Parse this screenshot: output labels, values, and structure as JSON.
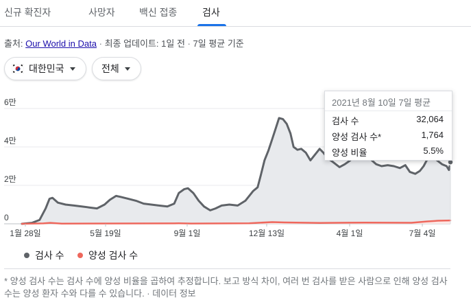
{
  "tabs": [
    {
      "label": "신규 확진자",
      "active": false
    },
    {
      "label": "사망자",
      "active": false
    },
    {
      "label": "백신 접종",
      "active": false
    },
    {
      "label": "검사",
      "active": true
    }
  ],
  "source": {
    "prefix": "출처:",
    "link": "Our World in Data",
    "updated": "최종 업데이트: 1일 전",
    "basis": "7일 평균 기준"
  },
  "filters": {
    "country": "대한민국",
    "scope": "전체"
  },
  "icons": {
    "country_flag": "south-korea-flag-icon",
    "dropdown": "caret-down-icon"
  },
  "tooltip": {
    "title": "2021년 8월 10일 7일 평균",
    "rows": [
      {
        "label": "검사 수",
        "value": "32,064"
      },
      {
        "label": "양성 검사 수*",
        "value": "1,764"
      },
      {
        "label": "양성 비율",
        "value": "5.5%"
      }
    ]
  },
  "legend": [
    {
      "label": "검사 수",
      "color": "#5f6368"
    },
    {
      "label": "양성 검사 수",
      "color": "#ee675c"
    }
  ],
  "footnote": "* 양성 검사 수는 검사 수에 양성 비율을 곱하여 추정합니다. 보고 방식 차이, 여러 번 검사를 받은 사람으로 인해 양성 검사 수는 양성 환자 수와 다를 수 있습니다. · 데이터 정보",
  "chart_data": {
    "type": "area",
    "ylim": [
      0,
      60000
    ],
    "yticks": [
      {
        "value": 0,
        "label": "0"
      },
      {
        "value": 20000,
        "label": "2만"
      },
      {
        "value": 40000,
        "label": "4만"
      },
      {
        "value": 60000,
        "label": "6만"
      }
    ],
    "xticks": [
      "1월 28일",
      "5월 19일",
      "9월 1일",
      "12월 13일",
      "4월 1일",
      "7월 4일"
    ],
    "xrange": [
      "2020-01-28",
      "2021-08-10"
    ],
    "series": [
      {
        "name": "검사 수",
        "color": "#5f6368",
        "points": [
          [
            "2020-01-28",
            0
          ],
          [
            "2020-02-10",
            500
          ],
          [
            "2020-02-20",
            2000
          ],
          [
            "2020-02-28",
            8000
          ],
          [
            "2020-03-04",
            13000
          ],
          [
            "2020-03-08",
            13500
          ],
          [
            "2020-03-15",
            11000
          ],
          [
            "2020-03-25",
            10000
          ],
          [
            "2020-04-05",
            9500
          ],
          [
            "2020-04-15",
            9000
          ],
          [
            "2020-04-25",
            8500
          ],
          [
            "2020-05-05",
            8000
          ],
          [
            "2020-05-15",
            10000
          ],
          [
            "2020-05-22",
            12500
          ],
          [
            "2020-05-30",
            14500
          ],
          [
            "2020-06-05",
            14000
          ],
          [
            "2020-06-15",
            13000
          ],
          [
            "2020-06-25",
            12000
          ],
          [
            "2020-07-05",
            10500
          ],
          [
            "2020-07-15",
            10000
          ],
          [
            "2020-07-25",
            9500
          ],
          [
            "2020-08-05",
            9000
          ],
          [
            "2020-08-14",
            10500
          ],
          [
            "2020-08-20",
            16000
          ],
          [
            "2020-08-27",
            18000
          ],
          [
            "2020-09-01",
            18500
          ],
          [
            "2020-09-08",
            16000
          ],
          [
            "2020-09-15",
            12000
          ],
          [
            "2020-09-22",
            9000
          ],
          [
            "2020-09-30",
            7000
          ],
          [
            "2020-10-07",
            8000
          ],
          [
            "2020-10-15",
            9500
          ],
          [
            "2020-10-25",
            10000
          ],
          [
            "2020-11-05",
            9500
          ],
          [
            "2020-11-15",
            12000
          ],
          [
            "2020-11-25",
            17000
          ],
          [
            "2020-12-01",
            19000
          ],
          [
            "2020-12-05",
            25000
          ],
          [
            "2020-12-10",
            33000
          ],
          [
            "2020-12-15",
            38000
          ],
          [
            "2020-12-20",
            44000
          ],
          [
            "2020-12-25",
            50000
          ],
          [
            "2020-12-29",
            55000
          ],
          [
            "2021-01-03",
            54500
          ],
          [
            "2021-01-08",
            52000
          ],
          [
            "2021-01-13",
            47000
          ],
          [
            "2021-01-17",
            40000
          ],
          [
            "2021-01-22",
            38500
          ],
          [
            "2021-01-27",
            39000
          ],
          [
            "2021-02-02",
            37000
          ],
          [
            "2021-02-08",
            33000
          ],
          [
            "2021-02-15",
            36500
          ],
          [
            "2021-02-20",
            39000
          ],
          [
            "2021-02-25",
            37000
          ],
          [
            "2021-03-03",
            34000
          ],
          [
            "2021-03-10",
            32000
          ],
          [
            "2021-03-18",
            29500
          ],
          [
            "2021-03-25",
            31000
          ],
          [
            "2021-04-01",
            33000
          ],
          [
            "2021-04-10",
            36500
          ],
          [
            "2021-04-20",
            35000
          ],
          [
            "2021-04-28",
            33500
          ],
          [
            "2021-05-05",
            31000
          ],
          [
            "2021-05-12",
            30000
          ],
          [
            "2021-05-20",
            30500
          ],
          [
            "2021-05-28",
            30000
          ],
          [
            "2021-06-05",
            29000
          ],
          [
            "2021-06-12",
            30500
          ],
          [
            "2021-06-18",
            27000
          ],
          [
            "2021-06-25",
            26000
          ],
          [
            "2021-07-01",
            27500
          ],
          [
            "2021-07-06",
            30000
          ],
          [
            "2021-07-10",
            33000
          ],
          [
            "2021-07-15",
            34500
          ],
          [
            "2021-07-22",
            33500
          ],
          [
            "2021-07-30",
            31000
          ],
          [
            "2021-08-05",
            30000
          ],
          [
            "2021-08-08",
            28000
          ],
          [
            "2021-08-10",
            32064
          ]
        ]
      },
      {
        "name": "양성 검사 수",
        "color": "#ee675c",
        "points": [
          [
            "2020-01-28",
            0
          ],
          [
            "2020-02-25",
            200
          ],
          [
            "2020-03-05",
            500
          ],
          [
            "2020-03-20",
            100
          ],
          [
            "2020-08-20",
            250
          ],
          [
            "2020-09-05",
            150
          ],
          [
            "2020-11-20",
            300
          ],
          [
            "2020-12-20",
            900
          ],
          [
            "2021-01-05",
            700
          ],
          [
            "2021-02-20",
            450
          ],
          [
            "2021-04-20",
            650
          ],
          [
            "2021-06-20",
            550
          ],
          [
            "2021-07-10",
            1200
          ],
          [
            "2021-07-25",
            1600
          ],
          [
            "2021-08-10",
            1764
          ]
        ]
      }
    ],
    "highlight_date": "2021-08-10"
  }
}
